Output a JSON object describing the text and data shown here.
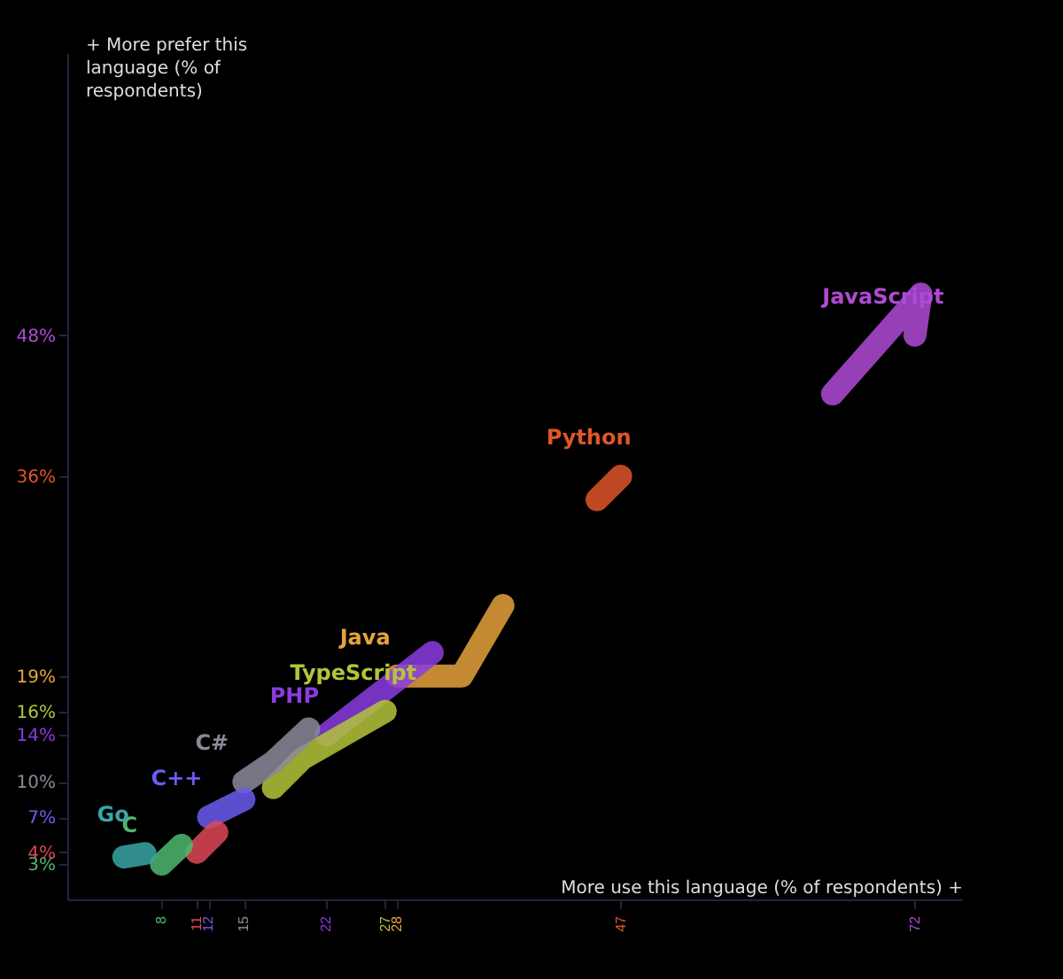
{
  "chart_data": {
    "type": "line",
    "xlabel": "More use this language (% of respondents) +",
    "ylabel": "+ More prefer this language (% of respondents)",
    "xlim": [
      0,
      76
    ],
    "ylim": [
      0,
      72
    ],
    "xticks": [
      8,
      11,
      12,
      15,
      22,
      27,
      28,
      47,
      72
    ],
    "yticks": [
      {
        "value": 3,
        "label": "3%"
      },
      {
        "value": 4,
        "label": "4%"
      },
      {
        "value": 7,
        "label": "7%"
      },
      {
        "value": 10,
        "label": "10%"
      },
      {
        "value": 14,
        "label": "14%"
      },
      {
        "value": 16,
        "label": "16%"
      },
      {
        "value": 19,
        "label": "19%"
      },
      {
        "value": 36,
        "label": "36%"
      },
      {
        "value": 48,
        "label": "48%"
      }
    ],
    "grid": false,
    "legend": false,
    "line_style": "solid",
    "series": [
      {
        "name": "JavaScript",
        "color": "#b04ad6",
        "x": [
          65,
          72.5,
          72
        ],
        "values": [
          43,
          51.5,
          48
        ]
      },
      {
        "name": "Python",
        "color": "#e0552a",
        "x": [
          45,
          47
        ],
        "values": [
          34,
          36
        ]
      },
      {
        "name": "Java",
        "color": "#e6a23c",
        "x": [
          37,
          33.5,
          28
        ],
        "values": [
          25,
          19,
          19
        ]
      },
      {
        "name": "PHP",
        "color": "#8a3ce0",
        "x": [
          31,
          22
        ],
        "values": [
          21,
          14
        ]
      },
      {
        "name": "TypeScript",
        "color": "#b5c43a",
        "x": [
          17.5,
          20,
          27
        ],
        "values": [
          9.5,
          12,
          16
        ]
      },
      {
        "name": "C#",
        "color": "#8a8a9a",
        "x": [
          20.5,
          17.5,
          15
        ],
        "values": [
          14.5,
          11.7,
          10
        ]
      },
      {
        "name": "C++",
        "color": "#6a5cf0",
        "x": [
          15,
          12
        ],
        "values": [
          8.5,
          7
        ]
      },
      {
        "color": "#e04858",
        "x": [
          12.7,
          11
        ],
        "values": [
          5.7,
          4
        ]
      },
      {
        "name": "C",
        "color": "#4fb870",
        "x": [
          9.7,
          8
        ],
        "values": [
          4.6,
          3
        ]
      },
      {
        "name": "Go",
        "color": "#3aa6a6",
        "x": [
          4.8,
          6.6
        ],
        "values": [
          3.6,
          3.9
        ]
      }
    ]
  }
}
